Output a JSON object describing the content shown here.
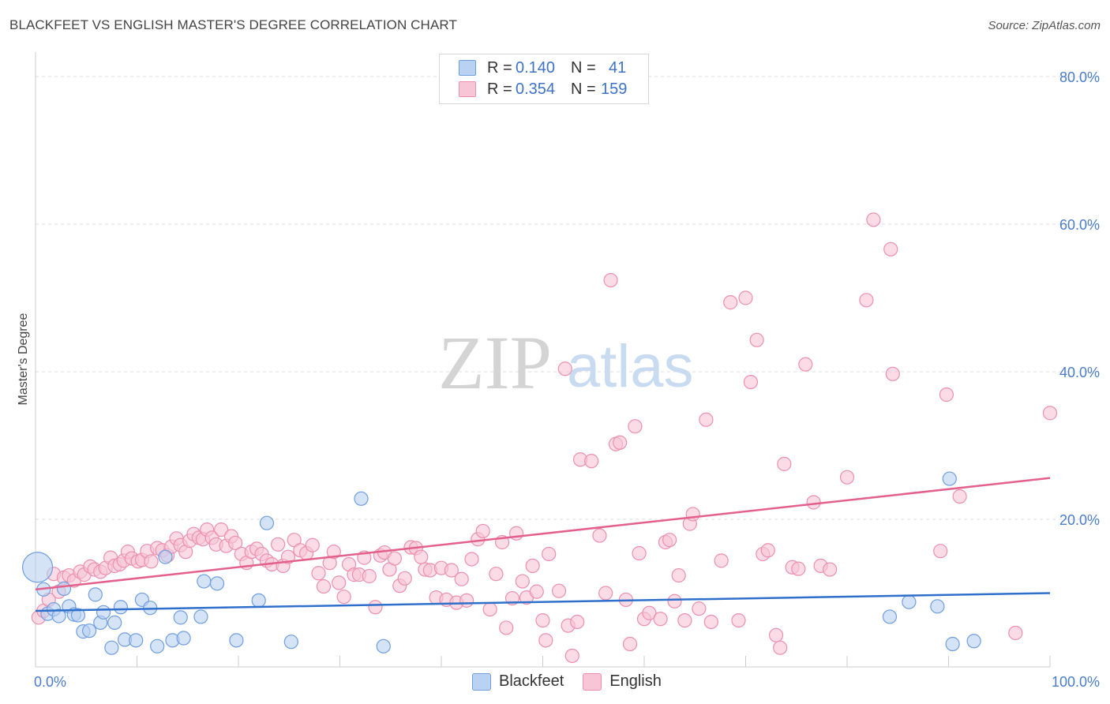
{
  "title": "BLACKFEET VS ENGLISH MASTER'S DEGREE CORRELATION CHART",
  "source": "Source: ZipAtlas.com",
  "watermark": {
    "zip": "ZIP",
    "atlas": "atlas"
  },
  "legend": {
    "r_label": "R =",
    "n_label": "N =",
    "rows": [
      {
        "name": "Blackfeet",
        "r": "0.140",
        "n": "41"
      },
      {
        "name": "English",
        "r": "0.354",
        "n": "159"
      }
    ]
  },
  "colors": {
    "blackfeet_fill": "#b9d1f2",
    "blackfeet_stroke": "#6f9ee0",
    "blackfeet_line": "#2f6fcc",
    "english_fill": "#f8c5d6",
    "english_stroke": "#ec8fae",
    "english_line": "#e4608c",
    "grid": "#dcdcdc",
    "tick_label": "#4a7cc9"
  },
  "chart_data": {
    "type": "scatter",
    "title": "BLACKFEET VS ENGLISH MASTER'S DEGREE CORRELATION CHART",
    "xlabel": "",
    "ylabel": "Master's Degree",
    "xlim": [
      0,
      100
    ],
    "ylim": [
      0,
      80
    ],
    "x_tick_labels": [
      "0.0%",
      "100.0%"
    ],
    "y_ticks": [
      20,
      40,
      60,
      80
    ],
    "y_tick_labels": [
      "20.0%",
      "40.0%",
      "60.0%",
      "80.0%"
    ],
    "series": [
      {
        "name": "Blackfeet",
        "r": 0.14,
        "n": 41,
        "trend": {
          "x": [
            0,
            100
          ],
          "y": [
            7.6,
            10.0
          ]
        },
        "points": [
          [
            0.2,
            13.5,
            "large"
          ],
          [
            0.8,
            10.5
          ],
          [
            1.2,
            7.2
          ],
          [
            1.8,
            7.8
          ],
          [
            2.3,
            6.9
          ],
          [
            2.8,
            10.6
          ],
          [
            3.3,
            8.2
          ],
          [
            3.8,
            7.1
          ],
          [
            4.2,
            7.0
          ],
          [
            4.7,
            4.8
          ],
          [
            5.3,
            4.9
          ],
          [
            5.9,
            9.8
          ],
          [
            6.4,
            6.0
          ],
          [
            6.7,
            7.4
          ],
          [
            7.5,
            2.6
          ],
          [
            7.8,
            6.0
          ],
          [
            8.4,
            8.1
          ],
          [
            8.8,
            3.7
          ],
          [
            9.9,
            3.6
          ],
          [
            10.5,
            9.1
          ],
          [
            11.3,
            8.0
          ],
          [
            12.0,
            2.8
          ],
          [
            12.8,
            14.9
          ],
          [
            13.5,
            3.6
          ],
          [
            14.3,
            6.7
          ],
          [
            14.6,
            3.9
          ],
          [
            16.3,
            6.8
          ],
          [
            16.6,
            11.6
          ],
          [
            17.9,
            11.3
          ],
          [
            19.8,
            3.6
          ],
          [
            22.0,
            9.0
          ],
          [
            22.8,
            19.5
          ],
          [
            25.2,
            3.4
          ],
          [
            32.1,
            22.8
          ],
          [
            34.3,
            2.8
          ],
          [
            84.2,
            6.8
          ],
          [
            86.1,
            8.8
          ],
          [
            88.9,
            8.2
          ],
          [
            90.1,
            25.5
          ],
          [
            90.4,
            3.1
          ],
          [
            92.5,
            3.5
          ]
        ]
      },
      {
        "name": "English",
        "r": 0.354,
        "n": 159,
        "trend": {
          "x": [
            0,
            100
          ],
          "y": [
            10.5,
            25.6
          ]
        },
        "points": [
          [
            0.3,
            6.7
          ],
          [
            0.8,
            7.6
          ],
          [
            1.3,
            9.1
          ],
          [
            1.8,
            12.6
          ],
          [
            2.3,
            10.2
          ],
          [
            2.8,
            12.1
          ],
          [
            3.3,
            12.4
          ],
          [
            3.8,
            11.7
          ],
          [
            4.4,
            12.9
          ],
          [
            4.8,
            12.5
          ],
          [
            5.4,
            13.6
          ],
          [
            5.8,
            13.2
          ],
          [
            6.4,
            12.9
          ],
          [
            6.9,
            13.4
          ],
          [
            7.4,
            14.8
          ],
          [
            7.8,
            13.7
          ],
          [
            8.3,
            13.9
          ],
          [
            8.7,
            14.4
          ],
          [
            9.1,
            15.6
          ],
          [
            9.5,
            14.7
          ],
          [
            10.1,
            14.3
          ],
          [
            10.5,
            14.5
          ],
          [
            11.0,
            15.7
          ],
          [
            11.4,
            14.3
          ],
          [
            12.0,
            16.1
          ],
          [
            12.5,
            15.8
          ],
          [
            13.0,
            15.1
          ],
          [
            13.4,
            16.3
          ],
          [
            13.9,
            17.4
          ],
          [
            14.3,
            16.5
          ],
          [
            14.8,
            15.6
          ],
          [
            15.2,
            17.1
          ],
          [
            15.6,
            18.0
          ],
          [
            16.1,
            17.5
          ],
          [
            16.5,
            17.3
          ],
          [
            16.9,
            18.6
          ],
          [
            17.4,
            17.5
          ],
          [
            17.8,
            16.6
          ],
          [
            18.3,
            18.6
          ],
          [
            18.8,
            16.4
          ],
          [
            19.3,
            17.7
          ],
          [
            19.7,
            16.8
          ],
          [
            20.3,
            15.3
          ],
          [
            20.8,
            14.1
          ],
          [
            21.3,
            15.6
          ],
          [
            21.8,
            16.0
          ],
          [
            22.3,
            15.3
          ],
          [
            22.8,
            14.4
          ],
          [
            23.3,
            13.9
          ],
          [
            23.9,
            16.6
          ],
          [
            24.4,
            13.7
          ],
          [
            24.9,
            14.9
          ],
          [
            25.5,
            17.2
          ],
          [
            26.1,
            15.8
          ],
          [
            26.7,
            15.4
          ],
          [
            27.3,
            16.5
          ],
          [
            27.9,
            12.7
          ],
          [
            28.4,
            10.9
          ],
          [
            29.0,
            14.1
          ],
          [
            29.4,
            15.6
          ],
          [
            29.9,
            11.4
          ],
          [
            30.4,
            9.5
          ],
          [
            30.9,
            13.9
          ],
          [
            31.4,
            12.5
          ],
          [
            31.9,
            12.5
          ],
          [
            32.4,
            14.8
          ],
          [
            32.9,
            12.3
          ],
          [
            33.5,
            8.1
          ],
          [
            34.0,
            15.1
          ],
          [
            34.4,
            15.5
          ],
          [
            34.9,
            13.2
          ],
          [
            35.4,
            14.7
          ],
          [
            35.9,
            11.0
          ],
          [
            36.4,
            12.0
          ],
          [
            37.0,
            16.2
          ],
          [
            37.5,
            16.1
          ],
          [
            38.0,
            14.9
          ],
          [
            38.4,
            13.2
          ],
          [
            38.9,
            13.1
          ],
          [
            39.5,
            9.4
          ],
          [
            40.0,
            13.4
          ],
          [
            40.5,
            9.1
          ],
          [
            41.0,
            13.1
          ],
          [
            41.5,
            8.7
          ],
          [
            42.0,
            11.9
          ],
          [
            42.5,
            9.0
          ],
          [
            43.0,
            14.6
          ],
          [
            43.6,
            17.3
          ],
          [
            44.1,
            18.4
          ],
          [
            44.8,
            7.8
          ],
          [
            45.4,
            12.6
          ],
          [
            46.0,
            16.9
          ],
          [
            46.4,
            5.3
          ],
          [
            47.0,
            9.3
          ],
          [
            47.4,
            18.1
          ],
          [
            48.0,
            11.6
          ],
          [
            48.4,
            9.4
          ],
          [
            49.0,
            13.7
          ],
          [
            49.4,
            10.2
          ],
          [
            50.0,
            6.3
          ],
          [
            50.3,
            3.6
          ],
          [
            50.6,
            15.3
          ],
          [
            51.6,
            10.3
          ],
          [
            52.2,
            40.4
          ],
          [
            52.5,
            5.6
          ],
          [
            52.9,
            1.5
          ],
          [
            53.4,
            6.1
          ],
          [
            53.7,
            28.1
          ],
          [
            54.8,
            27.9
          ],
          [
            55.6,
            17.8
          ],
          [
            56.2,
            10.0
          ],
          [
            56.7,
            52.4
          ],
          [
            57.2,
            30.2
          ],
          [
            57.6,
            30.4
          ],
          [
            58.2,
            9.1
          ],
          [
            58.6,
            3.1
          ],
          [
            59.1,
            32.6
          ],
          [
            59.5,
            15.4
          ],
          [
            60.0,
            6.5
          ],
          [
            60.5,
            7.3
          ],
          [
            61.6,
            6.5
          ],
          [
            62.1,
            16.9
          ],
          [
            62.5,
            17.2
          ],
          [
            63.0,
            8.9
          ],
          [
            63.4,
            12.4
          ],
          [
            64.0,
            6.3
          ],
          [
            64.5,
            19.4
          ],
          [
            64.8,
            20.7
          ],
          [
            65.4,
            7.9
          ],
          [
            66.1,
            33.5
          ],
          [
            66.6,
            6.1
          ],
          [
            67.6,
            14.4
          ],
          [
            68.5,
            49.4
          ],
          [
            69.3,
            6.3
          ],
          [
            70.0,
            50.0
          ],
          [
            70.5,
            38.6
          ],
          [
            71.1,
            44.3
          ],
          [
            71.7,
            15.3
          ],
          [
            72.2,
            15.8
          ],
          [
            73.0,
            4.3
          ],
          [
            73.4,
            2.6
          ],
          [
            73.8,
            27.5
          ],
          [
            74.6,
            13.5
          ],
          [
            75.2,
            13.3
          ],
          [
            75.9,
            41.0
          ],
          [
            76.7,
            22.3
          ],
          [
            77.4,
            13.7
          ],
          [
            78.3,
            13.2
          ],
          [
            80.0,
            25.7
          ],
          [
            81.9,
            49.7
          ],
          [
            82.6,
            60.6
          ],
          [
            84.3,
            56.6
          ],
          [
            84.5,
            39.7
          ],
          [
            89.2,
            15.7
          ],
          [
            89.8,
            36.9
          ],
          [
            91.1,
            23.1
          ],
          [
            96.6,
            4.6
          ],
          [
            100.0,
            34.4
          ]
        ]
      }
    ]
  }
}
